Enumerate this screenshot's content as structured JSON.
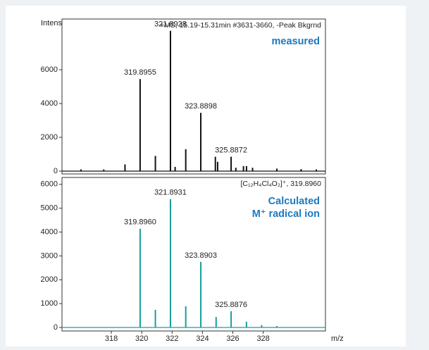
{
  "chart_data": [
    {
      "type": "stem",
      "ylabel": "Intens",
      "annotation": "+MS, 15.19-15.31min #3631-3660, -Peak Bkgrnd",
      "legend_text": [
        "measured"
      ],
      "color": "#111111",
      "x": [
        316.0,
        317.5,
        318.9,
        319.8955,
        320.9,
        321.8928,
        322.2,
        322.9,
        323.8898,
        324.85,
        325.0,
        325.8872,
        326.2,
        326.7,
        326.9,
        327.3,
        328.9,
        330.5,
        331.5
      ],
      "values": [
        100,
        100,
        400,
        5450,
        900,
        8300,
        250,
        1300,
        3450,
        850,
        550,
        850,
        200,
        300,
        300,
        200,
        150,
        120,
        100
      ],
      "peak_labels": [
        null,
        null,
        null,
        "319.8955",
        null,
        "321.8928",
        null,
        null,
        "323.8898",
        null,
        null,
        "325.8872",
        null,
        null,
        null,
        null,
        null,
        null,
        null
      ],
      "xlim": [
        314.75,
        332.1
      ],
      "ylim": [
        0,
        9000
      ],
      "yticks": [
        0,
        2000,
        4000,
        6000
      ]
    },
    {
      "type": "stem",
      "xlabel": "m/z",
      "annotation": "[C₁₂H₄Cl₄O₂]⁺, 319.8960",
      "legend_text": [
        "Calculated",
        "M⁺ radical ion"
      ],
      "color": "#1a9e9e",
      "x": [
        319.896,
        320.9,
        321.8931,
        322.9,
        323.8903,
        324.9,
        325.8876,
        326.9,
        327.9,
        328.9
      ],
      "values": [
        4140,
        740,
        5380,
        890,
        2750,
        440,
        680,
        240,
        100,
        60
      ],
      "peak_labels": [
        "319.8960",
        null,
        "321.8931",
        null,
        "323.8903",
        null,
        "325.8876",
        null,
        null,
        null
      ],
      "xlim": [
        314.75,
        332.1
      ],
      "xticks": [
        318,
        320,
        322,
        324,
        326,
        328
      ],
      "ylim": [
        0,
        6200
      ],
      "yticks": [
        0,
        1000,
        2000,
        3000,
        4000,
        5000,
        6000
      ]
    }
  ]
}
